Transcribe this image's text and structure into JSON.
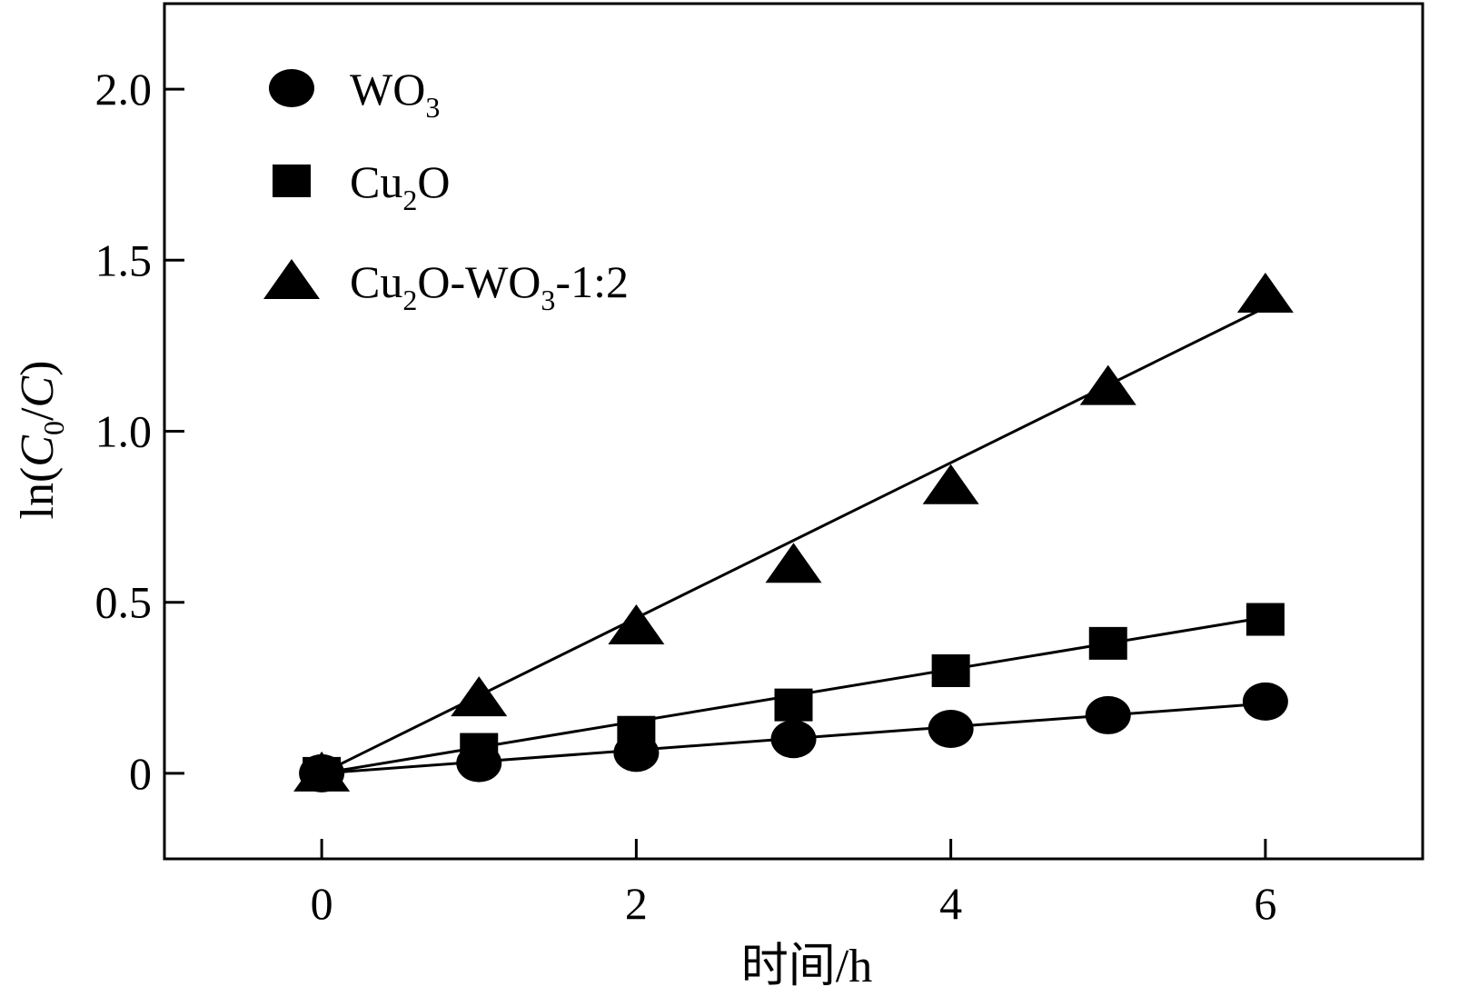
{
  "chart_data": {
    "type": "scatter",
    "title": "",
    "xlabel": "时间/h",
    "ylabel": {
      "prefix": "ln(",
      "c1": "C",
      "c1_sub": "0",
      "slash": "/",
      "c2": "C",
      "suffix": ")"
    },
    "xlim": [
      -1,
      7
    ],
    "ylim": [
      -0.25,
      2.25
    ],
    "x_ticks": [
      0,
      2,
      4,
      6
    ],
    "x_tick_labels": [
      "0",
      "2",
      "4",
      "6"
    ],
    "y_ticks": [
      0,
      0.5,
      1.0,
      1.5,
      2.0
    ],
    "y_tick_labels": [
      "0",
      "0.5",
      "1.0",
      "1.5",
      "2.0"
    ],
    "grid": false,
    "legend_position": "top-left",
    "x": [
      0,
      1,
      2,
      3,
      4,
      5,
      6
    ],
    "series": [
      {
        "key": "wo3",
        "name": "WO3",
        "legend": {
          "main": "WO",
          "sub": "3",
          "rest": ""
        },
        "marker": "circle",
        "values": [
          0,
          0.03,
          0.06,
          0.1,
          0.13,
          0.17,
          0.21
        ],
        "fit": {
          "slope": 0.034,
          "intercept": 0
        }
      },
      {
        "key": "cu2o",
        "name": "Cu2O",
        "legend": {
          "main": "Cu",
          "sub": "2",
          "rest": "O"
        },
        "marker": "square",
        "values": [
          0,
          0.07,
          0.12,
          0.2,
          0.3,
          0.38,
          0.45
        ],
        "fit": {
          "slope": 0.076,
          "intercept": 0
        }
      },
      {
        "key": "composite",
        "name": "Cu2O-WO3-1:2",
        "legend": {
          "main": "Cu",
          "sub": "2",
          "rest": "O-WO",
          "sub2": "3",
          "rest2": "-1:2"
        },
        "marker": "triangle",
        "values": [
          0,
          0.22,
          0.43,
          0.61,
          0.84,
          1.13,
          1.4
        ],
        "fit": {
          "slope": 0.227,
          "intercept": 0
        }
      }
    ],
    "colors": {
      "marker": "#000000",
      "line": "#000000",
      "background": "#ffffff"
    }
  }
}
